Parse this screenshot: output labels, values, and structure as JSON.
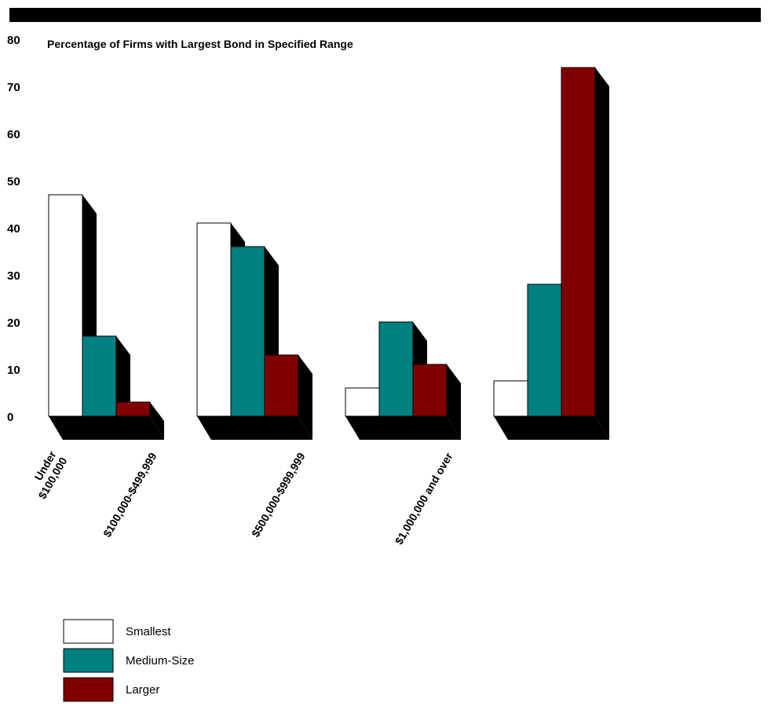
{
  "chart_data": {
    "type": "bar",
    "title": "Percentage of Firms with Largest Bond in Specified Range",
    "xlabel": "",
    "ylabel": "",
    "ylim": [
      0,
      80
    ],
    "yticks": [
      0,
      10,
      20,
      30,
      40,
      50,
      60,
      70,
      80
    ],
    "categories": [
      [
        "Under",
        "$100,000"
      ],
      [
        "$100,000-$499,999"
      ],
      [
        "$500,000-$999,999"
      ],
      [
        "$1,000,000 and over"
      ]
    ],
    "series": [
      {
        "name": "Smallest",
        "color": "#ffffff",
        "values": [
          47,
          41,
          6,
          7.5
        ]
      },
      {
        "name": "Medium-Size",
        "color": "#008080",
        "values": [
          17,
          36,
          20,
          28
        ]
      },
      {
        "name": "Larger",
        "color": "#800000",
        "values": [
          3,
          13,
          11,
          74
        ]
      }
    ],
    "legend_position": "bottom-left",
    "grid": false,
    "style": "3d"
  }
}
